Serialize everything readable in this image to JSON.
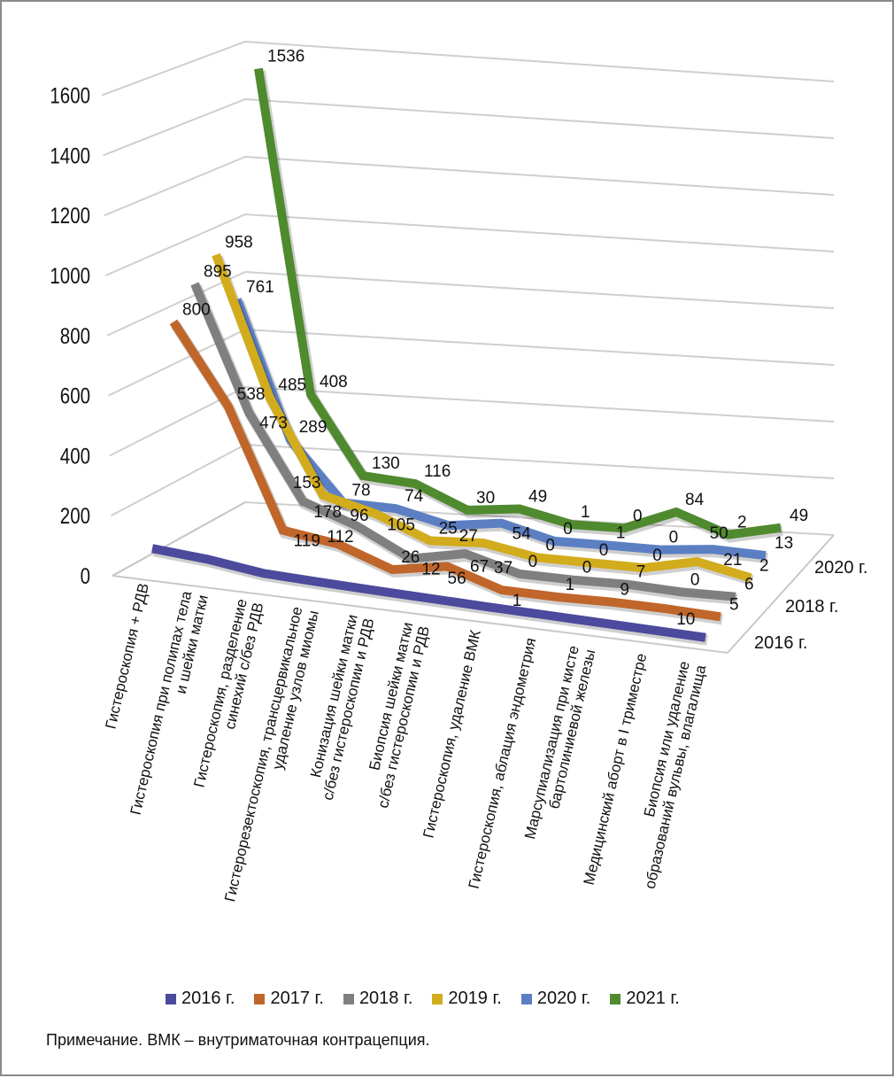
{
  "chart_data": {
    "type": "line",
    "style": "3d",
    "ylim": [
      0,
      1600
    ],
    "yticks": [
      "0",
      "200",
      "400",
      "600",
      "800",
      "1000",
      "1200",
      "1400",
      "1600"
    ],
    "grid": true,
    "legend_position": "bottom",
    "categories": [
      [
        "Гистероскопия + РДВ"
      ],
      [
        "Гистероскопия при полипах тела",
        "и шейки матки"
      ],
      [
        "Гистероскопия, разделение",
        "синехий с/без РДВ"
      ],
      [
        "Гистерорезектоскопия, трансцервикальное",
        "удаление узлов миомы"
      ],
      [
        "Конизация шейки матки",
        "с/без гистероскопии и РДВ"
      ],
      [
        "Биопсия шейки матки",
        "с/без гистероскопии и РДВ"
      ],
      [
        "Гистероскопия, удаление ВМК"
      ],
      [
        "Гистероскопия, аблация эндометрия"
      ],
      [
        "Марсупиализация при кисте",
        "бартолиниевой железы"
      ],
      [
        "Медицинский аборт в I триместре"
      ],
      [
        "Биопсия или удаление",
        "образований вульвы, влагалища"
      ]
    ],
    "depth_labels": [
      "2020 г.",
      "2018 г.",
      "2016 г."
    ],
    "series": [
      {
        "name": "2016 г.",
        "color": "#4b4a9c",
        "values": [
          40,
          30,
          8,
          5,
          3,
          2,
          1,
          1,
          1,
          1,
          1
        ],
        "labels_shown": false
      },
      {
        "name": "2017 г.",
        "color": "#c0662a",
        "values": [
          800,
          538,
          119,
          96,
          26,
          67,
          1,
          1,
          9,
          10,
          5
        ],
        "labels_shown": true
      },
      {
        "name": "2018 г.",
        "color": "#7f7f7f",
        "values": [
          895,
          473,
          178,
          112,
          12,
          56,
          0,
          0,
          7,
          0,
          6
        ],
        "labels_shown": true
      },
      {
        "name": "2019 г.",
        "color": "#d2ac1c",
        "values": [
          958,
          485,
          153,
          105,
          25,
          37,
          0,
          0,
          0,
          50,
          2
        ],
        "labels_shown": true
      },
      {
        "name": "2020 г.",
        "color": "#5b7fc2",
        "values": [
          761,
          289,
          78,
          74,
          27,
          54,
          0,
          1,
          0,
          21,
          13
        ],
        "labels_shown": true
      },
      {
        "name": "2021 г.",
        "color": "#4f8a2f",
        "values": [
          1536,
          408,
          130,
          116,
          30,
          49,
          1,
          0,
          84,
          2,
          49
        ],
        "labels_shown": true
      }
    ]
  },
  "note": "Примечание. ВМК – внутриматочная контрацепция."
}
